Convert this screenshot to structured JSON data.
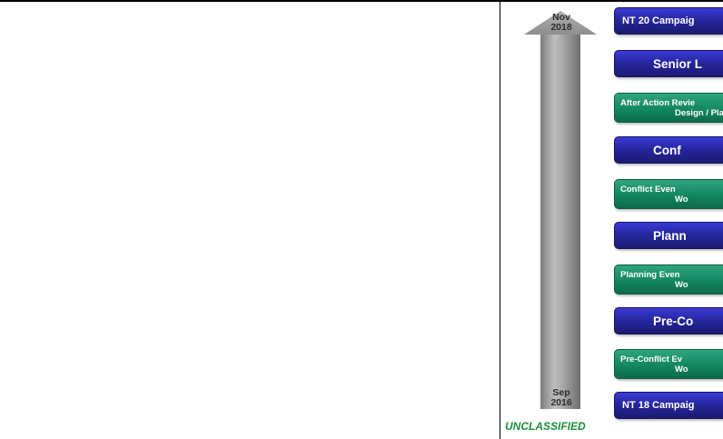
{
  "timeline": {
    "end_date": "Nov\n2018",
    "start_date": "Sep\n2016",
    "arrow_color": "#9a9a9a"
  },
  "events": [
    {
      "line1": "NT 20 Campaig",
      "line2": "",
      "style": "campaign",
      "color": "blue"
    },
    {
      "line1": "Senior L",
      "line2": "",
      "style": "major",
      "color": "blue"
    },
    {
      "line1": "After Action Revie",
      "line2": "Design / Pla",
      "style": "workshop",
      "color": "green"
    },
    {
      "line1": "Conf",
      "line2": "",
      "style": "major",
      "color": "blue"
    },
    {
      "line1": "Conflict Even",
      "line2": "Wo",
      "style": "workshop",
      "color": "green"
    },
    {
      "line1": "Plann",
      "line2": "",
      "style": "major",
      "color": "blue"
    },
    {
      "line1": "Planning Even",
      "line2": "Wo",
      "style": "workshop",
      "color": "green"
    },
    {
      "line1": "Pre-Co",
      "line2": "",
      "style": "major",
      "color": "blue"
    },
    {
      "line1": "Pre-Conflict Ev",
      "line2": "Wo",
      "style": "workshop",
      "color": "green"
    },
    {
      "line1": "NT 18 Campaig",
      "line2": "",
      "style": "campaign",
      "color": "blue"
    }
  ],
  "classification": "UNCLASSIFIED",
  "colors": {
    "blue": "#25259b",
    "green": "#138761",
    "classification": "#1b8f3d"
  }
}
